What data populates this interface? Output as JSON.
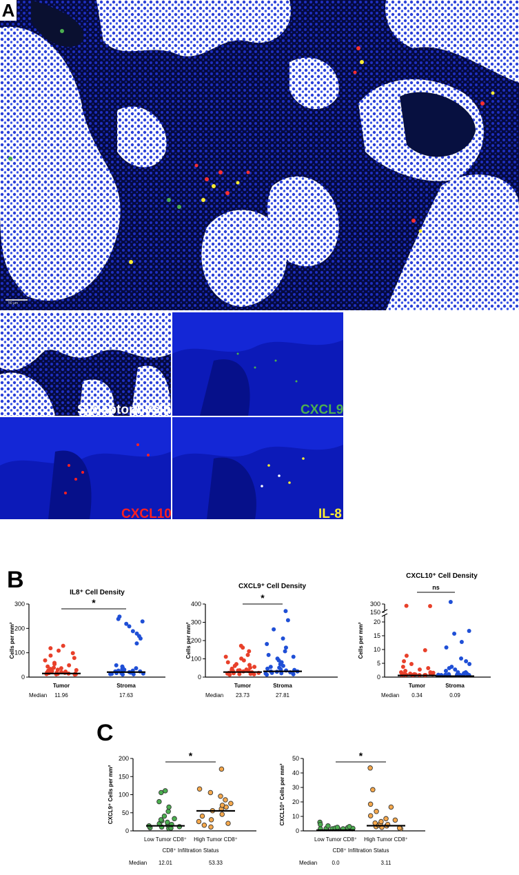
{
  "panel_labels": {
    "a": "A",
    "b": "B",
    "c": "C"
  },
  "colors": {
    "tumor": "#e8402a",
    "stroma": "#1f4fd6",
    "low_cd8": "#4caf50",
    "high_cd8": "#f5a84c",
    "nuclei_blue": "#1a22c8",
    "synaptophysin": "#ffffff",
    "cxcl9": "#4caf50",
    "cxcl10": "#ff2020",
    "il8": "#ffee33"
  },
  "images": {
    "scale_bar_label": "50 µm",
    "channels": {
      "synaptophysin": "Synaptophysin",
      "cxcl9": "CXCL9",
      "cxcl10": "CXCL10",
      "il8": "IL-8"
    }
  },
  "chart_data": [
    {
      "id": "il8",
      "type": "scatter",
      "title": "IL8⁺ Cell Density",
      "ylabel": "Cells per mm²",
      "ylim": [
        0,
        300
      ],
      "yticks": [
        "0",
        "100",
        "200",
        "300"
      ],
      "categories": [
        "Tumor",
        "Stroma"
      ],
      "median_label": "Median",
      "median_text": [
        "11.96",
        "17.63"
      ],
      "medians": [
        11.96,
        17.63
      ],
      "significance": "*",
      "series": [
        {
          "values": [
            2,
            3,
            4,
            5,
            6,
            8,
            10,
            12,
            14,
            16,
            18,
            20,
            22,
            25,
            28,
            30,
            35,
            40,
            45,
            50,
            60,
            70,
            80,
            90,
            100,
            110,
            120,
            3,
            6,
            9,
            11,
            13
          ]
        },
        {
          "values": [
            2,
            4,
            6,
            8,
            10,
            12,
            15,
            18,
            20,
            22,
            25,
            28,
            30,
            35,
            40,
            15,
            18,
            5,
            8,
            3,
            130,
            150,
            160,
            170,
            180,
            200,
            210,
            220,
            230,
            240
          ]
        }
      ]
    },
    {
      "id": "cxcl9",
      "type": "scatter",
      "title": "CXCL9⁺ Cell Density",
      "ylabel": "Cells per mm²",
      "ylim": [
        0,
        400
      ],
      "yticks": [
        "0",
        "100",
        "200",
        "300",
        "400"
      ],
      "categories": [
        "Tumor",
        "Stroma"
      ],
      "median_label": "Median",
      "median_text": [
        "23.73",
        "27.81"
      ],
      "medians": [
        23.73,
        27.81
      ],
      "significance": "*",
      "series": [
        {
          "values": [
            2,
            4,
            6,
            8,
            10,
            12,
            15,
            18,
            20,
            22,
            24,
            26,
            28,
            30,
            35,
            40,
            45,
            50,
            55,
            60,
            70,
            80,
            90,
            100,
            110,
            130,
            150,
            160,
            5,
            12,
            25
          ]
        },
        {
          "values": [
            2,
            4,
            6,
            8,
            10,
            12,
            15,
            18,
            20,
            25,
            28,
            30,
            35,
            40,
            45,
            50,
            60,
            70,
            80,
            90,
            100,
            110,
            130,
            150,
            170,
            200,
            250,
            300,
            350,
            20
          ]
        }
      ]
    },
    {
      "id": "cxcl10",
      "type": "scatter",
      "title": "CXCL10⁺ Cell Density",
      "ylabel": "Cells per mm²",
      "ylim": [
        0,
        300
      ],
      "axis_break": {
        "lower_range": [
          0,
          20
        ],
        "upper_range": [
          150,
          300
        ]
      },
      "yticks": [
        "0",
        "5",
        "10",
        "15",
        "20",
        "150",
        "300"
      ],
      "categories": [
        "Tumor",
        "Stroma"
      ],
      "median_label": "Median",
      "median_text": [
        "0.34",
        "0.09"
      ],
      "medians": [
        0.34,
        0.09
      ],
      "significance": "ns",
      "series": [
        {
          "values": [
            0,
            0,
            0,
            0,
            0,
            0,
            0,
            0.2,
            0.3,
            0.4,
            0.5,
            0.6,
            0.8,
            1,
            1,
            1.5,
            2,
            2.5,
            3,
            4,
            5,
            7,
            9,
            230,
            225,
            0.1,
            0.2
          ]
        },
        {
          "values": [
            0,
            0,
            0,
            0,
            0,
            0,
            0,
            0.1,
            0.2,
            0.3,
            0.5,
            0.7,
            1,
            1,
            1.5,
            2,
            2.5,
            3,
            4,
            5,
            6,
            10,
            12,
            15,
            16,
            300,
            0.1,
            0.3
          ]
        }
      ]
    },
    {
      "id": "cxcl9_cd8",
      "type": "scatter",
      "ylabel": "CXCL9⁺ Cells per mm²",
      "xlabel": "CD8⁺ Infiltration Status",
      "ylim": [
        0,
        200
      ],
      "yticks": [
        "0",
        "50",
        "100",
        "150",
        "200"
      ],
      "categories": [
        "Low Tumor CD8⁺",
        "High Tumor CD8⁺"
      ],
      "median_label": "Median",
      "median_text": [
        "12.01",
        "53.33"
      ],
      "medians": [
        12.01,
        53.33
      ],
      "significance": "*",
      "series": [
        {
          "values": [
            1,
            2,
            3,
            5,
            6,
            8,
            10,
            12,
            14,
            18,
            22,
            25,
            28,
            35,
            48,
            60,
            75,
            100,
            105
          ]
        },
        {
          "values": [
            5,
            10,
            15,
            20,
            25,
            35,
            40,
            50,
            55,
            60,
            65,
            70,
            80,
            90,
            100,
            110,
            165
          ]
        }
      ]
    },
    {
      "id": "cxcl10_cd8",
      "type": "scatter",
      "ylabel": "CXCL10⁺ Cells per mm²",
      "xlabel": "CD8⁺ Infiltration Status",
      "ylim": [
        0,
        50
      ],
      "yticks": [
        "0",
        "10",
        "20",
        "30",
        "40",
        "50"
      ],
      "categories": [
        "Low Tumor CD8⁺",
        "High Tumor CD8⁺"
      ],
      "median_label": "Median",
      "median_text": [
        "0.0",
        "3.11"
      ],
      "medians": [
        0.0,
        3.11
      ],
      "significance": "*",
      "series": [
        {
          "values": [
            0,
            0,
            0,
            0,
            0,
            0,
            0,
            0,
            0.2,
            0.3,
            0.5,
            0.8,
            1,
            1.5,
            2,
            4.5,
            3
          ]
        },
        {
          "values": [
            0,
            0.5,
            1,
            1.5,
            2,
            2.5,
            3,
            3.5,
            4,
            5,
            6,
            7,
            9,
            12,
            15,
            17,
            27,
            42
          ]
        }
      ]
    }
  ]
}
